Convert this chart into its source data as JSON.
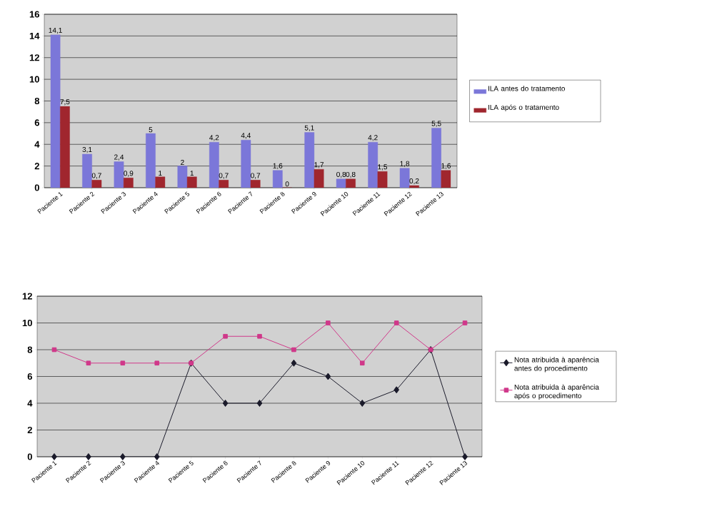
{
  "chart_data": [
    {
      "type": "bar",
      "categories": [
        "Paciente 1",
        "Paciente 2",
        "Paciente 3",
        "Paciente 4",
        "Paciente 5",
        "Paciente 6",
        "Paciente 7",
        "Paciente 8",
        "Paciente 9",
        "Paciente 10",
        "Paciente 11",
        "Paciente 12",
        "Paciente 13"
      ],
      "series": [
        {
          "name": "ILA antes do tratamento",
          "color": "#7b77d9",
          "values": [
            14.1,
            3.1,
            2.4,
            5,
            2,
            4.2,
            4.4,
            1.6,
            5.1,
            0.8,
            4.2,
            1.8,
            5.5
          ],
          "value_labels": [
            "14,1",
            "3,1",
            "2,4",
            "5",
            "2",
            "4,2",
            "4,4",
            "1,6",
            "5,1",
            "0,8",
            "4,2",
            "1,8",
            "5,5"
          ]
        },
        {
          "name": "ILA após o tratamento",
          "color": "#a0262e",
          "values": [
            7.5,
            0.7,
            0.9,
            1,
            1,
            0.7,
            0.7,
            0,
            1.7,
            0.8,
            1.5,
            0.2,
            1.6
          ],
          "value_labels": [
            "7,5",
            "0,7",
            "0,9",
            "1",
            "1",
            "0,7",
            "0,7",
            "0",
            "1,7",
            "0,8",
            "1,5",
            "0,2",
            "1,6"
          ]
        }
      ],
      "ylim": [
        0,
        16
      ],
      "yticks": [
        0,
        2,
        4,
        6,
        8,
        10,
        12,
        14,
        16
      ],
      "grid": "y",
      "legend": "right"
    },
    {
      "type": "line",
      "categories": [
        "Paciente 1",
        "Paciente 2",
        "Paciente 3",
        "Paciente 4",
        "Paciente 5",
        "Paciente 6",
        "Paciente 7",
        "Paciente 8",
        "Paciente 9",
        "Paciente 10",
        "Paciente 11",
        "Paciente 12",
        "Paciente 13"
      ],
      "series": [
        {
          "name": "Nota atribuida à aparência antes do procedimento",
          "color": "#1a1a2a",
          "marker": "diamond",
          "values": [
            0,
            0,
            0,
            0,
            7,
            4,
            4,
            7,
            6,
            4,
            5,
            8,
            0
          ]
        },
        {
          "name": "Nota atribuida à aparência após o procedimento",
          "color": "#d0388a",
          "marker": "square",
          "values": [
            8,
            7,
            7,
            7,
            7,
            9,
            9,
            8,
            10,
            7,
            10,
            8,
            10
          ]
        }
      ],
      "ylim": [
        0,
        12
      ],
      "yticks": [
        0,
        2,
        4,
        6,
        8,
        10,
        12
      ],
      "grid": "y",
      "legend": "right"
    }
  ]
}
